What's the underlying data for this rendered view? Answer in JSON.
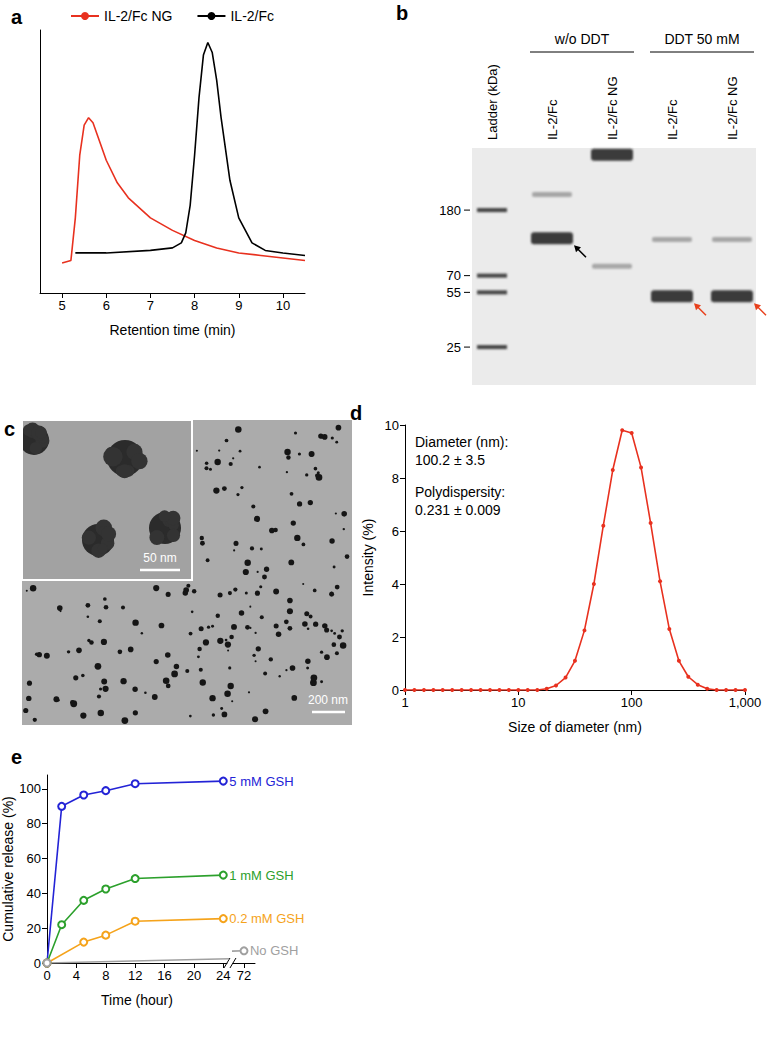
{
  "chart_data": [
    {
      "title": "a",
      "type": "line",
      "x_label": "Retention time (min)",
      "xlim": [
        4.5,
        10.5
      ],
      "xticks": [
        5,
        6,
        7,
        8,
        9,
        10
      ],
      "ylim": [
        0,
        1.05
      ],
      "yticks": [],
      "tick_labels": "x",
      "legend": "top",
      "grid": false,
      "marker": "none",
      "series": [
        {
          "name": "IL-2/Fc NG",
          "color": "#e8311f",
          "x": [
            5.0,
            5.2,
            5.3,
            5.4,
            5.5,
            5.6,
            5.7,
            5.8,
            6.0,
            6.25,
            6.5,
            7.0,
            7.5,
            8.0,
            8.5,
            9.0,
            9.5,
            10.0,
            10.5
          ],
          "values": [
            0.12,
            0.13,
            0.3,
            0.55,
            0.67,
            0.7,
            0.68,
            0.63,
            0.53,
            0.44,
            0.38,
            0.3,
            0.25,
            0.21,
            0.18,
            0.16,
            0.15,
            0.14,
            0.13
          ]
        },
        {
          "name": "IL-2/Fc",
          "color": "#000000",
          "x": [
            5.3,
            6.0,
            7.0,
            7.5,
            7.7,
            7.8,
            7.9,
            8.0,
            8.1,
            8.2,
            8.3,
            8.4,
            8.5,
            8.6,
            8.8,
            9.0,
            9.3,
            9.6,
            10.0,
            10.5
          ],
          "values": [
            0.16,
            0.16,
            0.17,
            0.18,
            0.2,
            0.24,
            0.35,
            0.55,
            0.78,
            0.95,
            1.0,
            0.96,
            0.85,
            0.7,
            0.45,
            0.3,
            0.2,
            0.17,
            0.16,
            0.15
          ]
        }
      ]
    },
    {
      "title": "d",
      "type": "line",
      "x_label": "Size of diameter (nm)",
      "y_label": "Intensity (%)",
      "log": "x",
      "xlim": [
        1,
        1000
      ],
      "xticks": [
        1,
        10,
        100,
        {
          "value": 1000,
          "label": "1,000"
        }
      ],
      "ylim": [
        0,
        10
      ],
      "yticks": [
        0,
        2,
        4,
        6,
        8,
        10
      ],
      "grid": false,
      "annotations": [
        "Diameter (nm):\n100.2 ± 3.5",
        "Polydispersity:\n0.231 ± 0.009"
      ],
      "series": [
        {
          "color": "#e8311f",
          "marker": "dot",
          "x": [
            1,
            1.21,
            1.47,
            1.78,
            2.15,
            2.61,
            3.16,
            3.83,
            4.64,
            5.62,
            6.81,
            8.25,
            10,
            12.1,
            14.7,
            17.8,
            21.5,
            26.1,
            31.6,
            38.3,
            46.4,
            56.2,
            68.1,
            82.5,
            100,
            121,
            147,
            178,
            215,
            261,
            316,
            383,
            464,
            562,
            681,
            825,
            1000
          ],
          "values": [
            0,
            0,
            0,
            0,
            0,
            0,
            0,
            0,
            0,
            0,
            0,
            0,
            0,
            0,
            0,
            0.05,
            0.17,
            0.47,
            1.1,
            2.25,
            4.0,
            6.2,
            8.3,
            9.8,
            9.7,
            8.4,
            6.3,
            4.1,
            2.3,
            1.1,
            0.5,
            0.2,
            0.05,
            0,
            0,
            0,
            0
          ]
        }
      ]
    },
    {
      "title": "e",
      "type": "line",
      "x_label": "Time (hour)",
      "y_label": "Cumulative release (%)",
      "xlim": [
        0,
        73.5
      ],
      "xbreak": [
        24.5,
        70.5
      ],
      "xticks": [
        0,
        4,
        8,
        12,
        16,
        20,
        24,
        72
      ],
      "ylim": [
        0,
        108
      ],
      "yticks": [
        0,
        20,
        40,
        60,
        80,
        100
      ],
      "grid": false,
      "series": [
        {
          "name": "5 mM GSH",
          "color": "#2323d6",
          "marker": "open_circle",
          "x": [
            0,
            2,
            5,
            8,
            12,
            24
          ],
          "values": [
            0,
            90,
            96.5,
            99,
            103,
            104.5
          ]
        },
        {
          "name": "1 mM GSH",
          "color": "#2ca02c",
          "marker": "open_circle",
          "x": [
            0,
            2,
            5,
            8,
            12,
            24
          ],
          "values": [
            0,
            22,
            36,
            42.5,
            48.5,
            50.5
          ]
        },
        {
          "name": "0.2 mM GSH",
          "color": "#f5a31b",
          "marker": "open_circle",
          "x": [
            0,
            5,
            8,
            12,
            24
          ],
          "values": [
            0,
            12,
            16,
            24,
            25.5
          ]
        },
        {
          "name": "No GSH",
          "color": "#a0a0a0",
          "marker": "open_circle",
          "x": [
            0,
            72
          ],
          "values": [
            0,
            7
          ]
        }
      ]
    }
  ],
  "gel": {
    "title": "b",
    "ladder_label": "Ladder (kDa)",
    "markers": [
      180,
      70,
      55,
      25
    ],
    "groups": [
      {
        "label": "w/o DDT",
        "lanes": [
          {
            "label": "IL-2/Fc",
            "main_band": 120,
            "faint_bands": [
              225
            ],
            "arrow": {
              "color": "#000000"
            }
          },
          {
            "label": "IL-2/Fc NG",
            "main_band": 400,
            "faint_bands": [
              80
            ]
          }
        ]
      },
      {
        "label": "DDT 50 mM",
        "lanes": [
          {
            "label": "IL-2/Fc",
            "main_band": 52,
            "faint_bands": [
              118
            ],
            "arrow": {
              "color": "#e8401c"
            }
          },
          {
            "label": "IL-2/Fc NG",
            "main_band": 52,
            "faint_bands": [
              118
            ],
            "arrow": {
              "color": "#e8401c"
            }
          }
        ]
      }
    ]
  },
  "micrograph": {
    "title": "c",
    "scale_bar": "200 nm",
    "inset": {
      "scale_bar": "50 nm"
    }
  }
}
